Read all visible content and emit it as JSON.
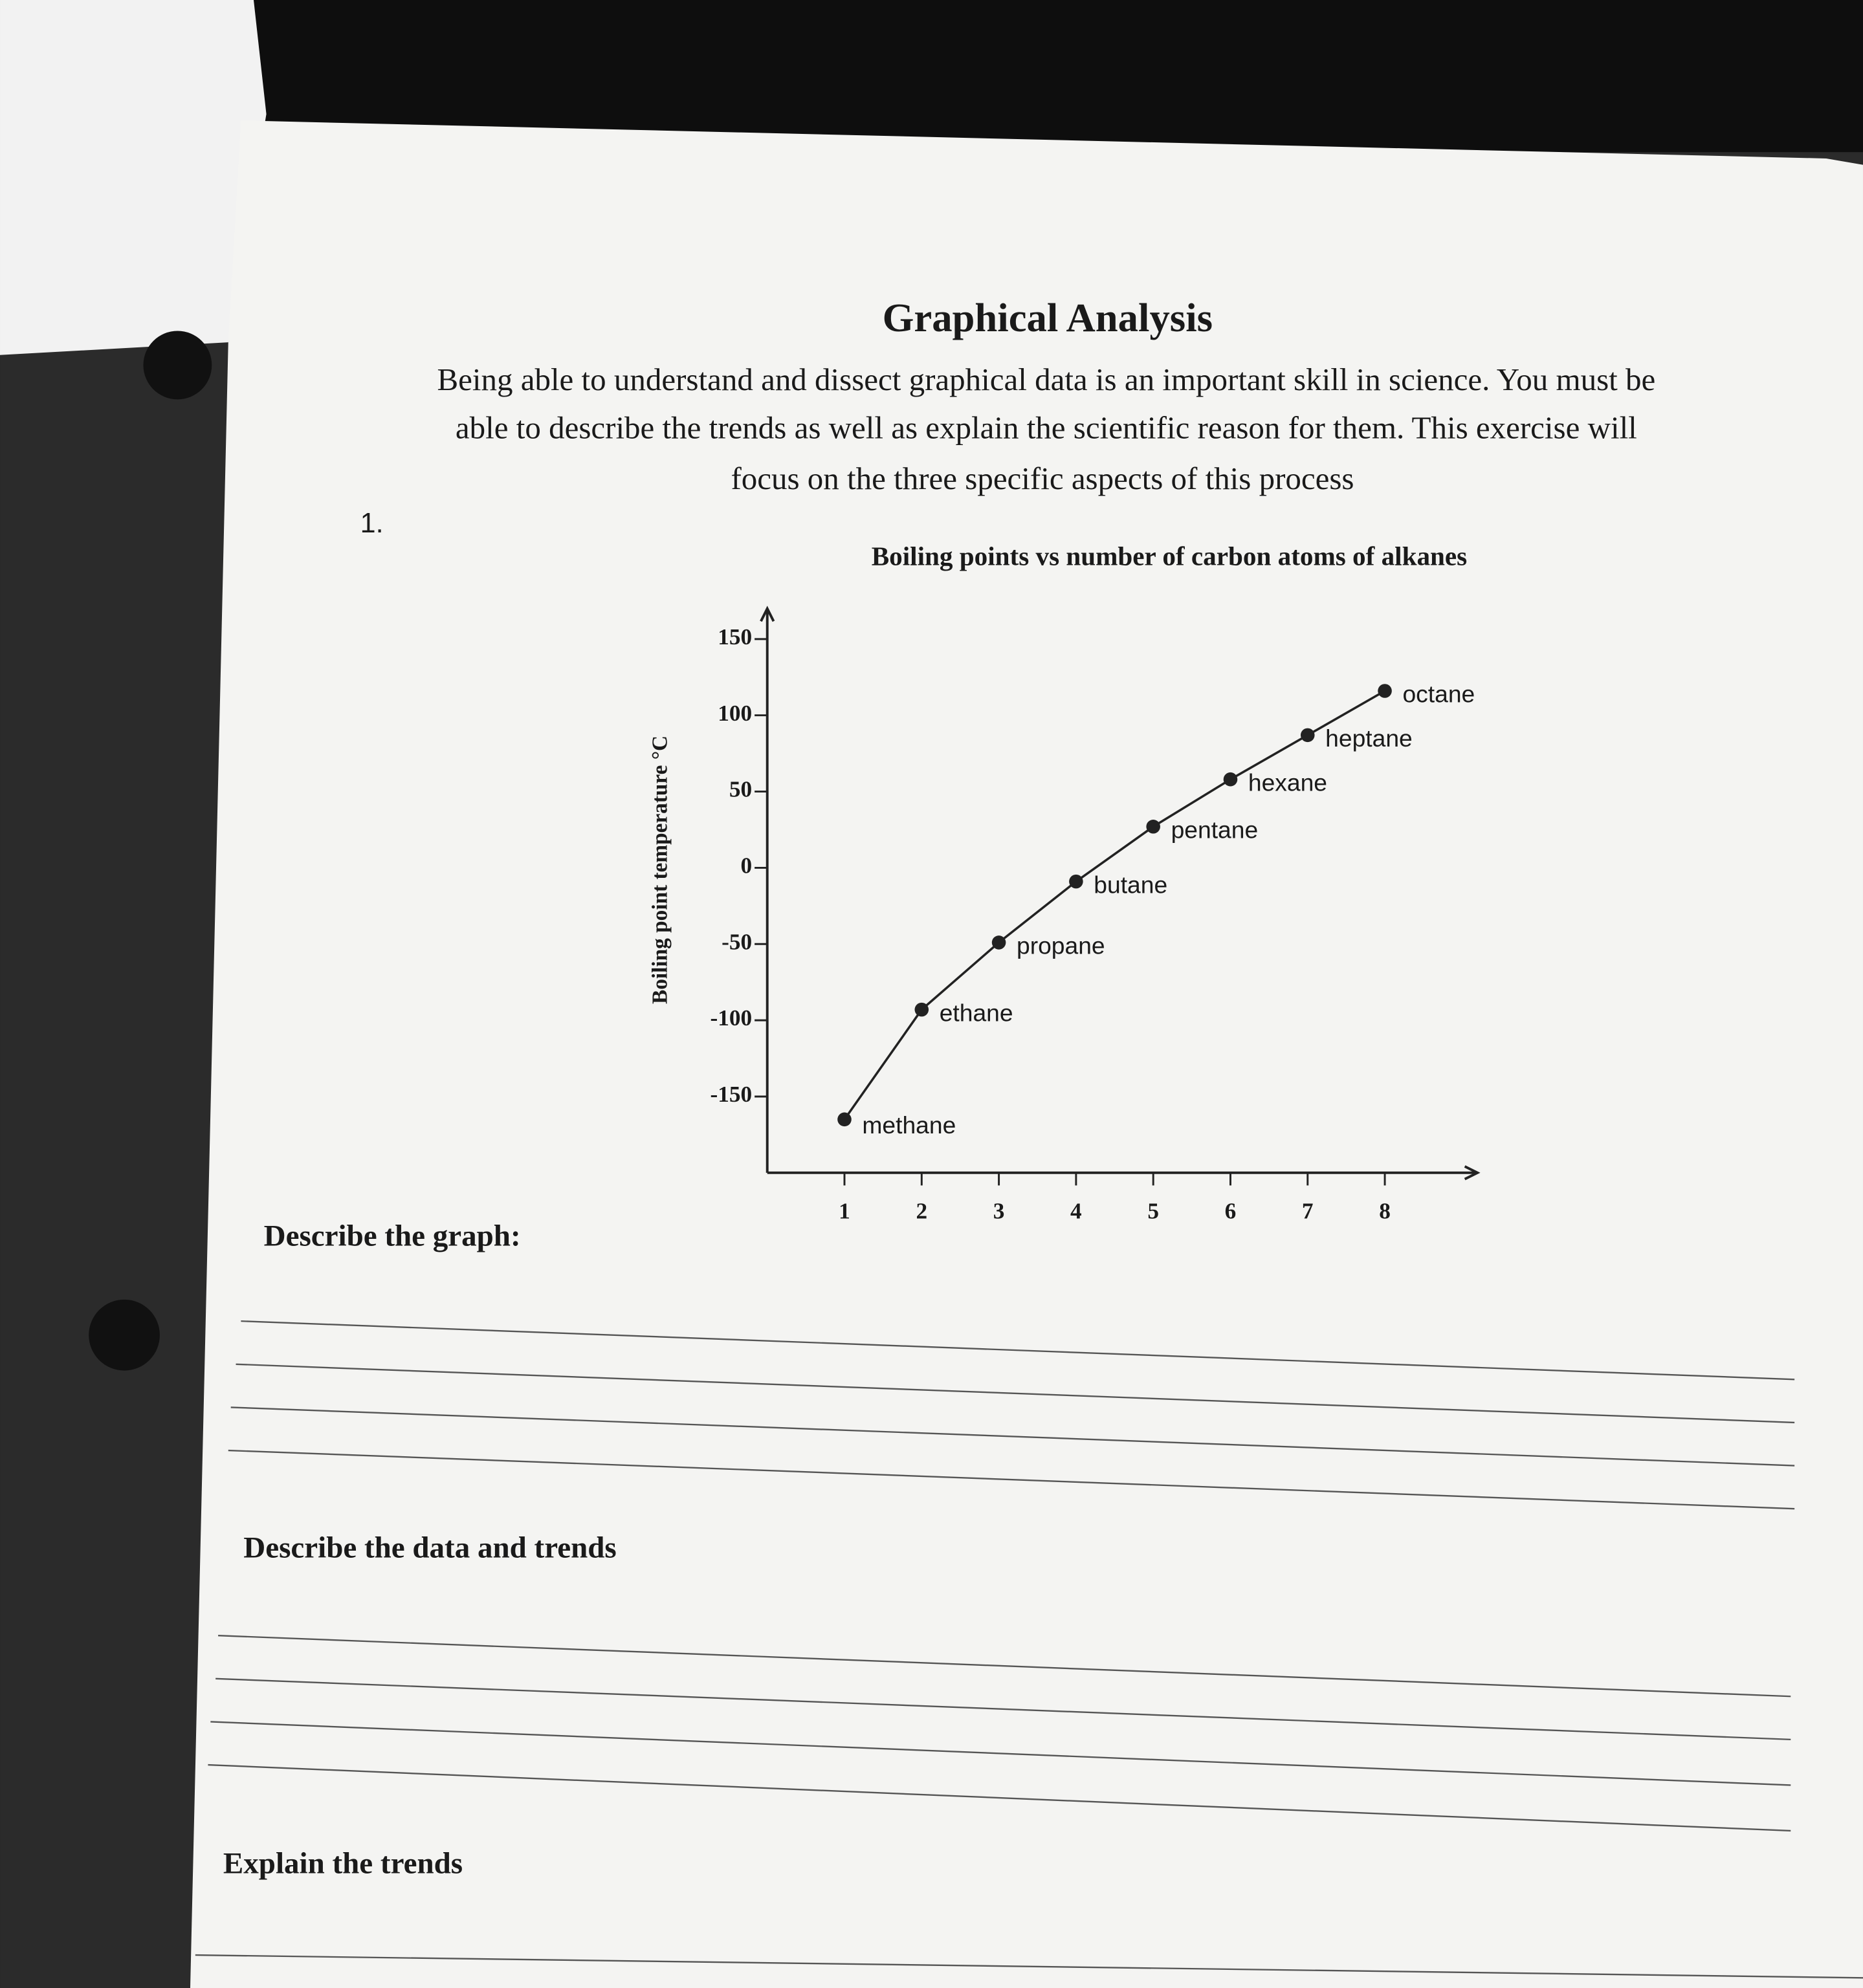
{
  "header": {
    "title": "Graphical Analysis",
    "intro": [
      "Being able to understand and dissect graphical data is an important skill in science.  You must be",
      "able to describe the trends as well as explain the scientific reason for them.  This exercise will",
      "focus on the three specific aspects of this process"
    ]
  },
  "question": {
    "number": "1."
  },
  "chart_data": {
    "type": "line",
    "title": "Boiling points vs number of carbon atoms of alkanes",
    "y_label": "Boiling point temperature °C",
    "x": [
      1,
      2,
      3,
      4,
      5,
      6,
      7,
      8
    ],
    "values": [
      -165,
      -93,
      -49,
      -9,
      27,
      58,
      87,
      116
    ],
    "labels": [
      "methane",
      "ethane",
      "propane",
      "butane",
      "pentane",
      "hexane",
      "heptane",
      "octane"
    ],
    "color": "#222222",
    "xlim": [
      0,
      9.2
    ],
    "ylim": [
      -200,
      170
    ],
    "xticks": [
      1,
      2,
      3,
      4,
      5,
      6,
      7,
      8
    ],
    "yticks": [
      -150,
      -100,
      -50,
      0,
      50,
      100,
      150
    ]
  },
  "prompts": [
    "Describe the graph:",
    "Describe the data and trends",
    "Explain the trends"
  ]
}
